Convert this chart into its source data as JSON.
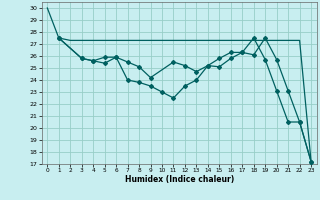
{
  "xlabel": "Humidex (Indice chaleur)",
  "bg_color": "#c8eef0",
  "grid_color": "#98cec8",
  "line_color": "#006060",
  "xlim": [
    -0.5,
    23.5
  ],
  "ylim": [
    17,
    30.5
  ],
  "yticks": [
    17,
    18,
    19,
    20,
    21,
    22,
    23,
    24,
    25,
    26,
    27,
    28,
    29,
    30
  ],
  "xticks": [
    0,
    1,
    2,
    3,
    4,
    5,
    6,
    7,
    8,
    9,
    10,
    11,
    12,
    13,
    14,
    15,
    16,
    17,
    18,
    19,
    20,
    21,
    22,
    23
  ],
  "line1_x": [
    0,
    1,
    2,
    3,
    4,
    5,
    6,
    7,
    8,
    9,
    10,
    11,
    12,
    13,
    14,
    15,
    16,
    17,
    18,
    19,
    20,
    21,
    22,
    23
  ],
  "line1_y": [
    30,
    27.5,
    27.3,
    27.3,
    27.3,
    27.3,
    27.3,
    27.3,
    27.3,
    27.3,
    27.3,
    27.3,
    27.3,
    27.3,
    27.3,
    27.3,
    27.3,
    27.3,
    27.3,
    27.3,
    27.3,
    27.3,
    27.3,
    17.2
  ],
  "line2_x": [
    1,
    3,
    4,
    5,
    6,
    7,
    8,
    9,
    11,
    12,
    13,
    14,
    15,
    16,
    17,
    18,
    19,
    20,
    21,
    22,
    23
  ],
  "line2_y": [
    27.5,
    25.8,
    25.6,
    25.9,
    25.9,
    25.5,
    25.1,
    24.2,
    25.5,
    25.2,
    24.7,
    25.2,
    25.8,
    26.3,
    26.3,
    27.5,
    25.7,
    23.1,
    20.5,
    20.5,
    17.2
  ],
  "line3_x": [
    1,
    3,
    4,
    5,
    6,
    7,
    8,
    9,
    10,
    11,
    12,
    13,
    14,
    15,
    16,
    17,
    18,
    19,
    20,
    21,
    22,
    23
  ],
  "line3_y": [
    27.5,
    25.8,
    25.6,
    25.4,
    25.9,
    24.0,
    23.8,
    23.5,
    23.0,
    22.5,
    23.5,
    24.0,
    25.2,
    25.1,
    25.8,
    26.3,
    26.1,
    27.5,
    25.7,
    23.1,
    20.5,
    17.2
  ]
}
